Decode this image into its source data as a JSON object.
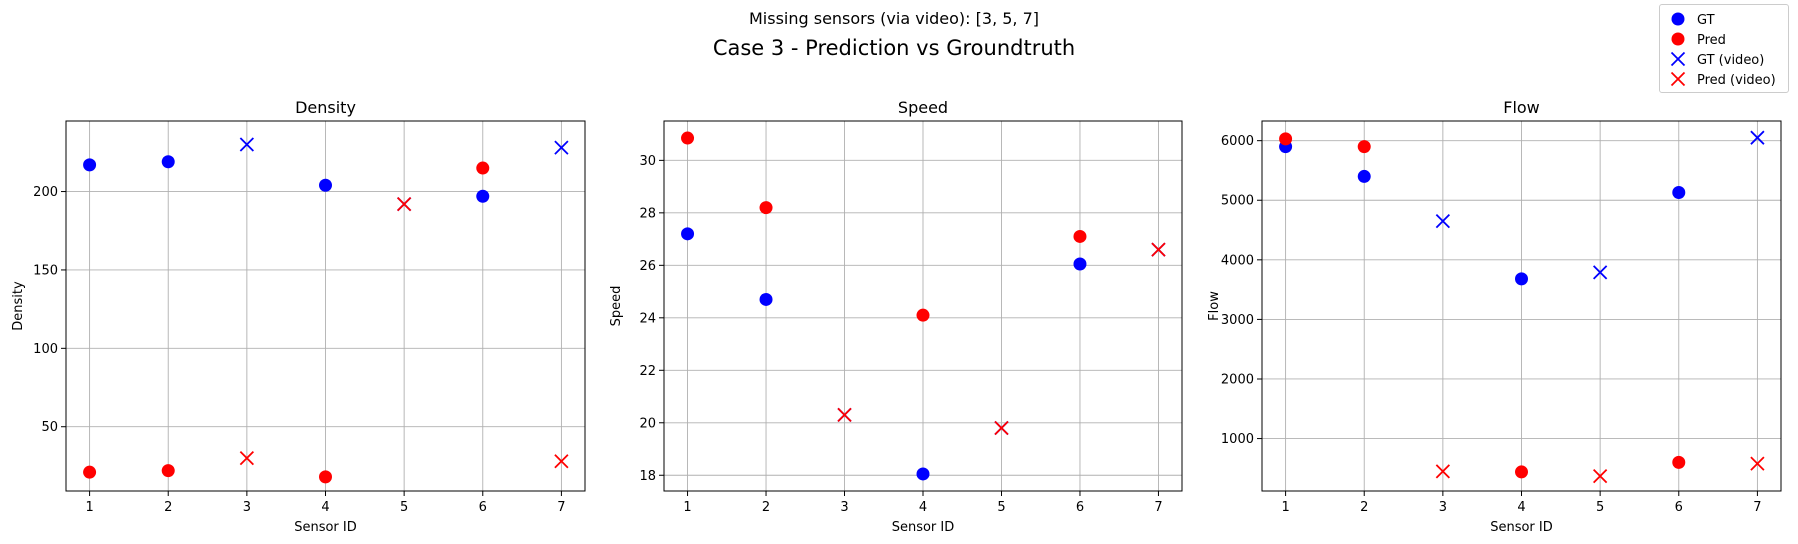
{
  "suptitle": "Missing sensors (via video): [3, 5, 7]",
  "title": "Case 3 - Prediction vs Groundtruth",
  "legend": {
    "placement": "top-right",
    "items": [
      {
        "label": "GT",
        "color": "#0000ff",
        "marker": "circle"
      },
      {
        "label": "Pred",
        "color": "#ff0000",
        "marker": "circle"
      },
      {
        "label": "GT (video)",
        "color": "#0000ff",
        "marker": "x"
      },
      {
        "label": "Pred (video)",
        "color": "#ff0000",
        "marker": "x"
      }
    ]
  },
  "chart_data": [
    {
      "type": "scatter",
      "title": "Density",
      "xlabel": "Sensor ID",
      "ylabel": "Density",
      "xlim": [
        0.7,
        7.3
      ],
      "ylim": [
        9,
        245
      ],
      "xticks": [
        1,
        2,
        3,
        4,
        5,
        6,
        7
      ],
      "yticks": [
        50,
        100,
        150,
        200
      ],
      "grid": true,
      "series": [
        {
          "name": "GT",
          "marker": "circle",
          "color": "#0000ff",
          "points": [
            [
              1,
              217
            ],
            [
              2,
              219
            ],
            [
              4,
              204
            ],
            [
              6,
              197
            ]
          ]
        },
        {
          "name": "Pred",
          "marker": "circle",
          "color": "#ff0000",
          "points": [
            [
              1,
              21
            ],
            [
              2,
              22
            ],
            [
              4,
              18
            ],
            [
              6,
              215
            ]
          ]
        },
        {
          "name": "GT (video)",
          "marker": "x",
          "color": "#0000ff",
          "points": [
            [
              3,
              230
            ],
            [
              5,
              192
            ],
            [
              7,
              228
            ]
          ]
        },
        {
          "name": "Pred (video)",
          "marker": "x",
          "color": "#ff0000",
          "points": [
            [
              3,
              30
            ],
            [
              5,
              192
            ],
            [
              7,
              28
            ]
          ]
        }
      ]
    },
    {
      "type": "scatter",
      "title": "Speed",
      "xlabel": "Sensor ID",
      "ylabel": "Speed",
      "xlim": [
        0.7,
        7.3
      ],
      "ylim": [
        17.4,
        31.5
      ],
      "xticks": [
        1,
        2,
        3,
        4,
        5,
        6,
        7
      ],
      "yticks": [
        18,
        20,
        22,
        24,
        26,
        28,
        30
      ],
      "grid": true,
      "series": [
        {
          "name": "GT",
          "marker": "circle",
          "color": "#0000ff",
          "points": [
            [
              1,
              27.2
            ],
            [
              2,
              24.7
            ],
            [
              4,
              18.05
            ],
            [
              6,
              26.05
            ]
          ]
        },
        {
          "name": "Pred",
          "marker": "circle",
          "color": "#ff0000",
          "points": [
            [
              1,
              30.85
            ],
            [
              2,
              28.2
            ],
            [
              4,
              24.1
            ],
            [
              6,
              27.1
            ]
          ]
        },
        {
          "name": "GT (video)",
          "marker": "x",
          "color": "#0000ff",
          "points": [
            [
              3,
              20.3
            ],
            [
              5,
              19.8
            ],
            [
              7,
              26.6
            ]
          ]
        },
        {
          "name": "Pred (video)",
          "marker": "x",
          "color": "#ff0000",
          "points": [
            [
              3,
              20.3
            ],
            [
              5,
              19.8
            ],
            [
              7,
              26.6
            ]
          ]
        }
      ]
    },
    {
      "type": "scatter",
      "title": "Flow",
      "xlabel": "Sensor ID",
      "ylabel": "Flow",
      "xlim": [
        0.7,
        7.3
      ],
      "ylim": [
        120,
        6330
      ],
      "xticks": [
        1,
        2,
        3,
        4,
        5,
        6,
        7
      ],
      "yticks": [
        1000,
        2000,
        3000,
        4000,
        5000,
        6000
      ],
      "grid": true,
      "series": [
        {
          "name": "GT",
          "marker": "circle",
          "color": "#0000ff",
          "points": [
            [
              1,
              5900
            ],
            [
              2,
              5400
            ],
            [
              4,
              3680
            ],
            [
              6,
              5130
            ]
          ]
        },
        {
          "name": "Pred",
          "marker": "circle",
          "color": "#ff0000",
          "points": [
            [
              1,
              6030
            ],
            [
              2,
              5900
            ],
            [
              4,
              440
            ],
            [
              6,
              600
            ]
          ]
        },
        {
          "name": "GT (video)",
          "marker": "x",
          "color": "#0000ff",
          "points": [
            [
              3,
              4650
            ],
            [
              5,
              3790
            ],
            [
              7,
              6050
            ]
          ]
        },
        {
          "name": "Pred (video)",
          "marker": "x",
          "color": "#ff0000",
          "points": [
            [
              3,
              450
            ],
            [
              5,
              370
            ],
            [
              7,
              580
            ]
          ]
        }
      ]
    }
  ]
}
